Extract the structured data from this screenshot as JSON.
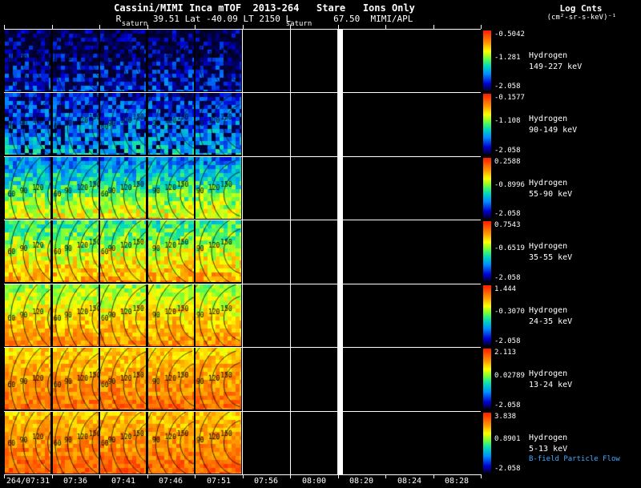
{
  "header": {
    "title_line1": "Cassini/MIMI Inca mTOF  2013-264   Stare   Ions Only",
    "title_line2": "R      39.51 Lat -40.09 LT 2150 L        67.50  MIMI/APL",
    "legend_title": "Log Cnts",
    "legend_units": "(cm²-sr-s-keV)⁻¹"
  },
  "saturn_labels": [
    {
      "text": "saturn",
      "x": 168
    },
    {
      "text": "saturn",
      "x": 373
    }
  ],
  "time_axis": {
    "labels": [
      "264/07:31",
      "07:36",
      "07:41",
      "07:46",
      "07:51",
      "07:56",
      "08:00",
      "08:20",
      "08:24",
      "08:28"
    ]
  },
  "rows": [
    {
      "species": "Hydrogen",
      "energy": "149-227 keV",
      "cb_top": "-0.5042",
      "cb_mid": "-1.281",
      "cb_bot": "-2.058"
    },
    {
      "species": "Hydrogen",
      "energy": "90-149 keV",
      "cb_top": "-0.1577",
      "cb_mid": "-1.108",
      "cb_bot": "-2.058"
    },
    {
      "species": "Hydrogen",
      "energy": "55-90 keV",
      "cb_top": "0.2588",
      "cb_mid": "-0.8996",
      "cb_bot": "-2.058"
    },
    {
      "species": "Hydrogen",
      "energy": "35-55 keV",
      "cb_top": "0.7543",
      "cb_mid": "-0.6519",
      "cb_bot": "-2.058"
    },
    {
      "species": "Hydrogen",
      "energy": "24-35 keV",
      "cb_top": "1.444",
      "cb_mid": "-0.3070",
      "cb_bot": "-2.058"
    },
    {
      "species": "Hydrogen",
      "energy": "13-24 keV",
      "cb_top": "2.113",
      "cb_mid": "0.02789",
      "cb_bot": "-2.058"
    },
    {
      "species": "Hydrogen",
      "energy": "5-13 keV",
      "cb_top": "3.838",
      "cb_mid": "0.8901",
      "cb_bot": "-2.058"
    }
  ],
  "contour_levels": [
    "30",
    "60",
    "90",
    "120",
    "150"
  ],
  "footer_note": "B-field Particle Flow",
  "colors": {
    "background": "#000000",
    "text": "#ffffff",
    "note_text": "#44aaff",
    "grid": "#ffffff"
  },
  "chart_data": {
    "type": "heatmap",
    "title": "Cassini/MIMI Inca mTOF 2013-264 Stare Ions Only",
    "spacecraft_context": {
      "R": 39.51,
      "Lat": -40.09,
      "LT": "2150",
      "L": 67.5
    },
    "instrument": "MIMI/APL",
    "colorbar_label": "Log Cnts (cm²-sr-s-keV)⁻¹",
    "x": [
      "264/07:31",
      "07:36",
      "07:41",
      "07:46",
      "07:51",
      "07:56",
      "08:00",
      "08:20",
      "08:24",
      "08:28"
    ],
    "series": [
      {
        "name": "Hydrogen 149-227 keV",
        "colorbar": {
          "max": -0.5042,
          "mid": -1.281,
          "min": -2.058
        }
      },
      {
        "name": "Hydrogen 90-149 keV",
        "colorbar": {
          "max": -0.1577,
          "mid": -1.108,
          "min": -2.058
        }
      },
      {
        "name": "Hydrogen 55-90 keV",
        "colorbar": {
          "max": 0.2588,
          "mid": -0.8996,
          "min": -2.058
        }
      },
      {
        "name": "Hydrogen 35-55 keV",
        "colorbar": {
          "max": 0.7543,
          "mid": -0.6519,
          "min": -2.058
        }
      },
      {
        "name": "Hydrogen 24-35 keV",
        "colorbar": {
          "max": 1.444,
          "mid": -0.307,
          "min": -2.058
        }
      },
      {
        "name": "Hydrogen 13-24 keV",
        "colorbar": {
          "max": 2.113,
          "mid": 0.02789,
          "min": -2.058
        }
      },
      {
        "name": "Hydrogen 5-13 keV",
        "colorbar": {
          "max": 3.838,
          "mid": 0.8901,
          "min": -2.058
        }
      }
    ],
    "contour_levels": [
      30,
      60,
      90,
      120,
      150
    ],
    "annotations": [
      "saturn",
      "saturn",
      "B-field Particle Flow"
    ],
    "legend_position": "right",
    "notes": "Sky-map image data present in first five time columns (07:31-07:56); remaining time columns blank; white vertical gap band before 08:20; 7 stacked energy-band panels each with its own rainbow colorbar (log counts)."
  }
}
